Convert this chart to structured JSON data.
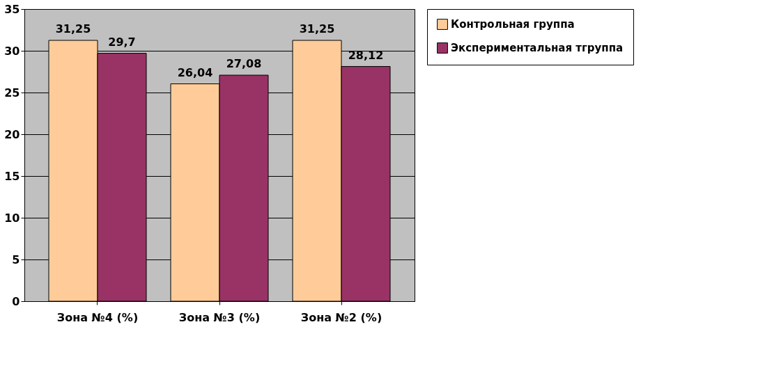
{
  "chart_data": {
    "type": "bar",
    "categories": [
      "Зона №4 (%)",
      "Зона №3 (%)",
      "Зона №2 (%)"
    ],
    "series": [
      {
        "name": "Контрольная группа",
        "color": "#ffcc99",
        "values": [
          31.25,
          26.04,
          31.25
        ],
        "value_labels": [
          "31,25",
          "26,04",
          "31,25"
        ]
      },
      {
        "name": "Экспериментальная тгруппа",
        "color": "#993366",
        "values": [
          29.7,
          27.08,
          28.12
        ],
        "value_labels": [
          "29,7",
          "27,08",
          "28,12"
        ]
      }
    ],
    "ylim": [
      0,
      35
    ],
    "yticks": [
      0,
      5,
      10,
      15,
      20,
      25,
      30,
      35
    ],
    "grid": "y",
    "legend": "right"
  }
}
